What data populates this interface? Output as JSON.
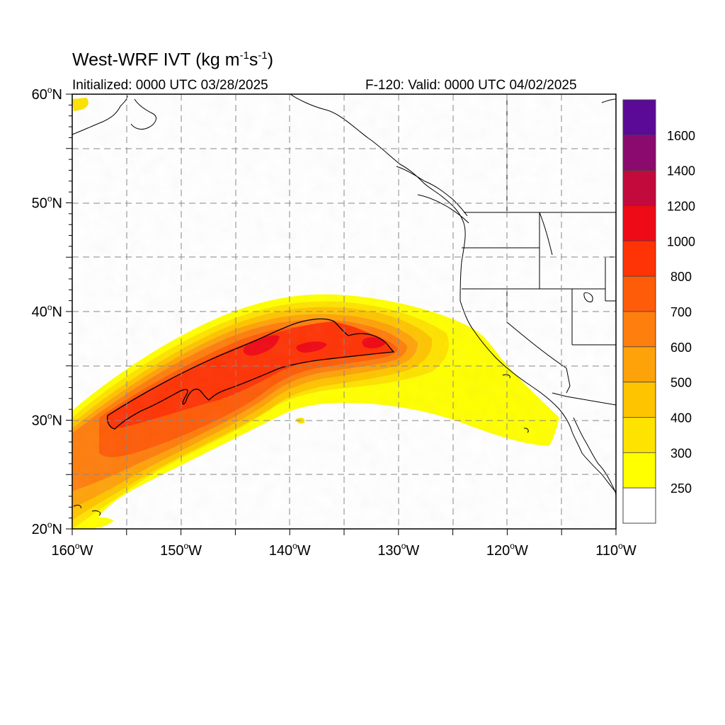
{
  "title": {
    "main": "West-WRF IVT (kg m",
    "sup1": "-1",
    "mid": "s",
    "sup2": "-1",
    "end": ")"
  },
  "subtitle_left": "Initialized: 0000 UTC 03/28/2025",
  "subtitle_right": "F-120: Valid: 0000 UTC 04/02/2025",
  "lat_labels": [
    {
      "deg": "60",
      "sfx": "N",
      "value": 60
    },
    {
      "deg": "50",
      "sfx": "N",
      "value": 50
    },
    {
      "deg": "40",
      "sfx": "N",
      "value": 40
    },
    {
      "deg": "30",
      "sfx": "N",
      "value": 30
    },
    {
      "deg": "20",
      "sfx": "N",
      "value": 20
    }
  ],
  "lon_labels": [
    {
      "deg": "160",
      "sfx": "W",
      "value": -160
    },
    {
      "deg": "150",
      "sfx": "W",
      "value": -150
    },
    {
      "deg": "140",
      "sfx": "W",
      "value": -140
    },
    {
      "deg": "130",
      "sfx": "W",
      "value": -130
    },
    {
      "deg": "120",
      "sfx": "W",
      "value": -120
    },
    {
      "deg": "110",
      "sfx": "W",
      "value": -110
    }
  ],
  "legend": {
    "labels": [
      "1600",
      "1400",
      "1200",
      "1000",
      "800",
      "700",
      "600",
      "500",
      "400",
      "300",
      "250"
    ],
    "colors": [
      "#5a0a96",
      "#8a0a6e",
      "#c20a3c",
      "#ee0a16",
      "#fe3406",
      "#fe5c08",
      "#fe7e0e",
      "#fea20a",
      "#fec400",
      "#fee200",
      "#ffff00",
      "#ffffff"
    ]
  },
  "map": {
    "extent": {
      "lon_min": -160,
      "lon_max": -110,
      "lat_min": 20,
      "lat_max": 60
    },
    "contour_level": 800
  }
}
